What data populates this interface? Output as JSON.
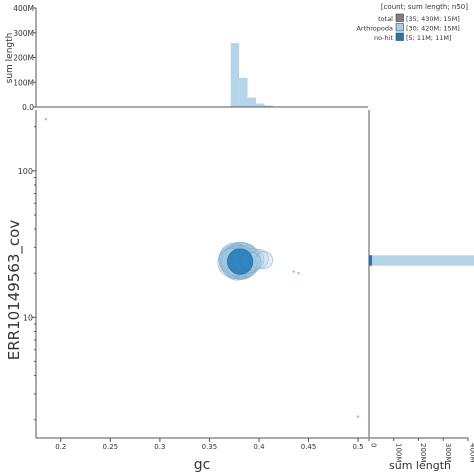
{
  "chart_data": {
    "type": "scatter",
    "xlabel": "gc",
    "ylabel": "ERR10149563_cov",
    "xlim": [
      0.175,
      0.51
    ],
    "ylim": [
      1.5,
      260
    ],
    "yscale": "log",
    "x_ticks": [
      0.2,
      0.25,
      0.3,
      0.35,
      0.4,
      0.45,
      0.5
    ],
    "x_tick_labels": [
      "0.2",
      "0.25",
      "0.3",
      "0.35",
      "0.4",
      "0.45",
      "0.5"
    ],
    "y_ticks": [
      10,
      100
    ],
    "y_tick_labels": [
      "10",
      "100"
    ],
    "legend": {
      "title": "[count; sum length; n50]",
      "placement": "top-right",
      "entries": [
        {
          "name": "total",
          "label": "[35; 430M; 15M]",
          "color": "#7f7f7f"
        },
        {
          "name": "Arthropoda",
          "label": "[30; 420M; 15M]",
          "color": "#a6cee3"
        },
        {
          "name": "no-hit",
          "label": "[5; 11M; 11M]",
          "color": "#1f78b4"
        }
      ]
    },
    "series": [
      {
        "name": "Arthropoda",
        "color": "#a6cee3",
        "points": [
          {
            "x": 0.375,
            "y": 24,
            "length_mb": 15
          },
          {
            "x": 0.377,
            "y": 25,
            "length_mb": 15
          },
          {
            "x": 0.379,
            "y": 23.5,
            "length_mb": 15
          },
          {
            "x": 0.381,
            "y": 24.5,
            "length_mb": 15
          },
          {
            "x": 0.383,
            "y": 23,
            "length_mb": 15
          },
          {
            "x": 0.385,
            "y": 25.5,
            "length_mb": 14
          },
          {
            "x": 0.378,
            "y": 22.5,
            "length_mb": 14
          },
          {
            "x": 0.38,
            "y": 26,
            "length_mb": 14
          },
          {
            "x": 0.376,
            "y": 23.8,
            "length_mb": 15
          },
          {
            "x": 0.382,
            "y": 24.2,
            "length_mb": 15
          },
          {
            "x": 0.374,
            "y": 24.8,
            "length_mb": 14
          },
          {
            "x": 0.386,
            "y": 23.6,
            "length_mb": 14
          },
          {
            "x": 0.384,
            "y": 24.6,
            "length_mb": 15
          },
          {
            "x": 0.379,
            "y": 25.2,
            "length_mb": 14
          },
          {
            "x": 0.381,
            "y": 22.8,
            "length_mb": 14
          },
          {
            "x": 0.377,
            "y": 23.2,
            "length_mb": 15
          },
          {
            "x": 0.383,
            "y": 25.8,
            "length_mb": 14
          },
          {
            "x": 0.375,
            "y": 25.6,
            "length_mb": 14
          },
          {
            "x": 0.38,
            "y": 24,
            "length_mb": 15
          },
          {
            "x": 0.378,
            "y": 24.4,
            "length_mb": 15
          },
          {
            "x": 0.382,
            "y": 23.4,
            "length_mb": 15
          },
          {
            "x": 0.376,
            "y": 24.2,
            "length_mb": 14
          },
          {
            "x": 0.384,
            "y": 24,
            "length_mb": 15
          },
          {
            "x": 0.387,
            "y": 24.8,
            "length_mb": 14
          },
          {
            "x": 0.373,
            "y": 23.6,
            "length_mb": 14
          },
          {
            "x": 0.39,
            "y": 24.3,
            "length_mb": 6
          },
          {
            "x": 0.394,
            "y": 24.8,
            "length_mb": 8
          },
          {
            "x": 0.4,
            "y": 25,
            "length_mb": 6
          },
          {
            "x": 0.405,
            "y": 24.6,
            "length_mb": 5
          },
          {
            "x": 0.392,
            "y": 23.8,
            "length_mb": 7
          }
        ]
      },
      {
        "name": "no-hit",
        "color": "#1f78b4",
        "points": [
          {
            "x": 0.381,
            "y": 24,
            "length_mb": 11
          },
          {
            "x": 0.44,
            "y": 20,
            "length_mb": 0.05
          },
          {
            "x": 0.185,
            "y": 225,
            "length_mb": 0.05
          },
          {
            "x": 0.435,
            "y": 20.5,
            "length_mb": 0.05
          },
          {
            "x": 0.5,
            "y": 2.1,
            "length_mb": 0.05
          }
        ]
      }
    ],
    "top_histogram": {
      "ylabel": "sum length",
      "ylim": [
        0,
        400
      ],
      "y_ticks": [
        0,
        100,
        200,
        300,
        400
      ],
      "y_tick_labels": [
        "0.0",
        "100M",
        "200M",
        "300M",
        "400M"
      ],
      "bin_width": 0.0085,
      "bins": [
        {
          "x0": 0.3715,
          "value": 258
        },
        {
          "x0": 0.38,
          "value": 118
        },
        {
          "x0": 0.3885,
          "value": 38
        },
        {
          "x0": 0.397,
          "value": 14
        },
        {
          "x0": 0.4055,
          "value": 6
        },
        {
          "x0": 0.414,
          "value": 1
        }
      ]
    },
    "right_histogram": {
      "xlabel": "sum length",
      "xlim": [
        0,
        400
      ],
      "x_ticks": [
        0,
        100,
        200,
        300,
        400
      ],
      "x_tick_labels": [
        "0",
        "100M",
        "200M",
        "300M",
        "400M"
      ],
      "bins": [
        {
          "y0": 22.5,
          "y1": 26.5,
          "value": 428
        }
      ]
    }
  }
}
